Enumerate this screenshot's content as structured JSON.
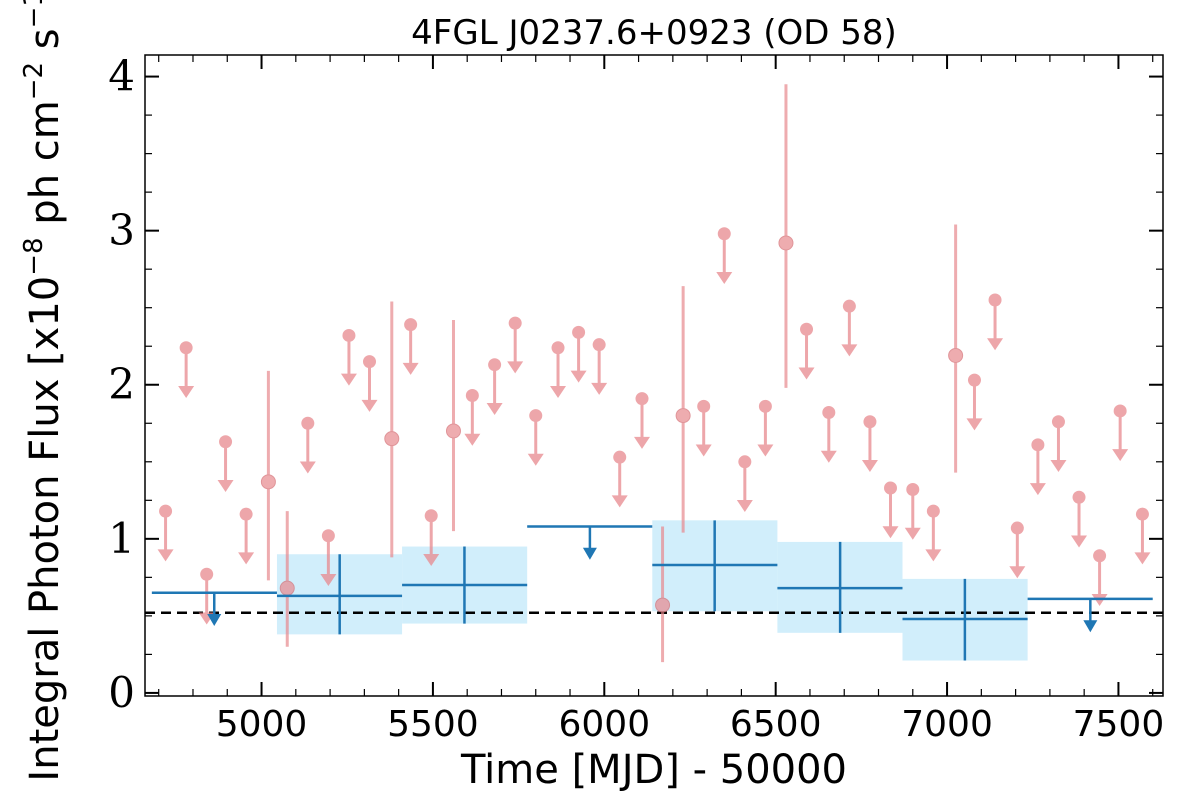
{
  "chart_data": {
    "type": "scatter",
    "title": "4FGL J0237.6+0923 (OD 58)",
    "xlabel": "Time [MJD] - 50000",
    "ylabel": "Integral Photon Flux [x10",
    "ylabel_exp1": "−8",
    "ylabel_mid": " ph cm",
    "ylabel_exp2": "−2",
    "ylabel_end": " s",
    "ylabel_exp3": "−1",
    "ylabel_close": "]",
    "xlim": [
      4660,
      7630
    ],
    "ylim": [
      -0.02,
      4.14
    ],
    "xticks": [
      5000,
      5500,
      6000,
      6500,
      7000,
      7500
    ],
    "yticks": [
      0,
      1,
      2,
      3,
      4
    ],
    "grid": false,
    "colors": {
      "short_bins": "#e8898e",
      "long_bins": "#1f77b4",
      "band_fill": "#d1eefb",
      "reference_line": "#000000"
    },
    "reference_line_y": 0.52,
    "short_bins": {
      "points": [
        {
          "x": 5020,
          "y": 1.37,
          "ylo": 0.73,
          "yhi": 2.09
        },
        {
          "x": 5075,
          "y": 0.68,
          "ylo": 0.3,
          "yhi": 1.18
        },
        {
          "x": 5380,
          "y": 1.65,
          "ylo": 0.88,
          "yhi": 2.54
        },
        {
          "x": 5560,
          "y": 1.7,
          "ylo": 1.05,
          "yhi": 2.42
        },
        {
          "x": 6170,
          "y": 0.57,
          "ylo": 0.2,
          "yhi": 1.08
        },
        {
          "x": 6230,
          "y": 1.8,
          "ylo": 1.04,
          "yhi": 2.64
        },
        {
          "x": 6530,
          "y": 2.92,
          "ylo": 1.98,
          "yhi": 3.95
        },
        {
          "x": 7025,
          "y": 2.19,
          "ylo": 1.43,
          "yhi": 3.04
        }
      ],
      "upper_limits": [
        {
          "x": 4720,
          "y": 1.18
        },
        {
          "x": 4780,
          "y": 2.24
        },
        {
          "x": 4840,
          "y": 0.77
        },
        {
          "x": 4895,
          "y": 1.63
        },
        {
          "x": 4955,
          "y": 1.16
        },
        {
          "x": 5135,
          "y": 1.75
        },
        {
          "x": 5195,
          "y": 1.02
        },
        {
          "x": 5255,
          "y": 2.32
        },
        {
          "x": 5315,
          "y": 2.15
        },
        {
          "x": 5435,
          "y": 2.39
        },
        {
          "x": 5495,
          "y": 1.15
        },
        {
          "x": 5615,
          "y": 1.93
        },
        {
          "x": 5680,
          "y": 2.13
        },
        {
          "x": 5740,
          "y": 2.4
        },
        {
          "x": 5800,
          "y": 1.8
        },
        {
          "x": 5865,
          "y": 2.24
        },
        {
          "x": 5925,
          "y": 2.34
        },
        {
          "x": 5985,
          "y": 2.26
        },
        {
          "x": 6045,
          "y": 1.53
        },
        {
          "x": 6110,
          "y": 1.91
        },
        {
          "x": 6290,
          "y": 1.86
        },
        {
          "x": 6350,
          "y": 2.98
        },
        {
          "x": 6410,
          "y": 1.5
        },
        {
          "x": 6470,
          "y": 1.86
        },
        {
          "x": 6590,
          "y": 2.36
        },
        {
          "x": 6655,
          "y": 1.82
        },
        {
          "x": 6715,
          "y": 2.51
        },
        {
          "x": 6775,
          "y": 1.76
        },
        {
          "x": 6835,
          "y": 1.33
        },
        {
          "x": 6900,
          "y": 1.32
        },
        {
          "x": 6960,
          "y": 1.18
        },
        {
          "x": 7080,
          "y": 2.03
        },
        {
          "x": 7140,
          "y": 2.55
        },
        {
          "x": 7205,
          "y": 1.07
        },
        {
          "x": 7265,
          "y": 1.61
        },
        {
          "x": 7325,
          "y": 1.76
        },
        {
          "x": 7385,
          "y": 1.27
        },
        {
          "x": 7445,
          "y": 0.89
        },
        {
          "x": 7505,
          "y": 1.83
        },
        {
          "x": 7570,
          "y": 1.16
        }
      ]
    },
    "long_bins": {
      "points": [
        {
          "x0": 5045,
          "x1": 5410,
          "xc": 5228,
          "y": 0.63,
          "ylo": 0.38,
          "yhi": 0.9
        },
        {
          "x0": 5410,
          "x1": 5775,
          "xc": 5592,
          "y": 0.7,
          "ylo": 0.45,
          "yhi": 0.95
        },
        {
          "x0": 6140,
          "x1": 6505,
          "xc": 6322,
          "y": 0.83,
          "ylo": 0.53,
          "yhi": 1.12
        },
        {
          "x0": 6505,
          "x1": 6870,
          "xc": 6688,
          "y": 0.68,
          "ylo": 0.39,
          "yhi": 0.98
        },
        {
          "x0": 6870,
          "x1": 7235,
          "xc": 7052,
          "y": 0.48,
          "ylo": 0.21,
          "yhi": 0.74
        }
      ],
      "upper_limits": [
        {
          "x0": 4680,
          "x1": 5045,
          "xc": 4862,
          "y": 0.65
        },
        {
          "x0": 5775,
          "x1": 6140,
          "xc": 5958,
          "y": 1.08
        },
        {
          "x0": 7235,
          "x1": 7600,
          "xc": 7418,
          "y": 0.61
        }
      ]
    }
  }
}
